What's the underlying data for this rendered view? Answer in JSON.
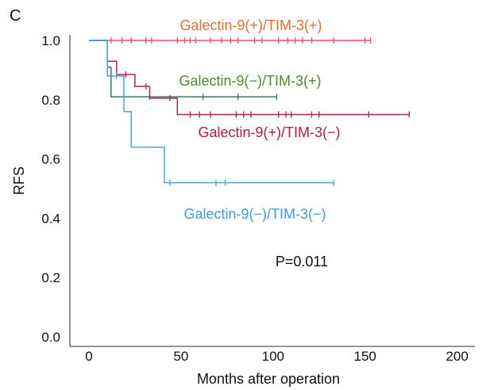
{
  "chart_data": {
    "type": "line",
    "panel_label": "C",
    "xlabel": "Months after operation",
    "ylabel": "RFS",
    "xlim": [
      -10,
      210
    ],
    "ylim": [
      0,
      1.05
    ],
    "xticks": [
      "0",
      "50",
      "100",
      "150",
      "200"
    ],
    "xtick_values": [
      0,
      50,
      100,
      150,
      200
    ],
    "yticks": [
      "0.0",
      "0.2",
      "0.4",
      "0.6",
      "0.8",
      "1.0"
    ],
    "ytick_values": [
      0,
      0.2,
      0.4,
      0.6,
      0.8,
      1.0
    ],
    "annotation": "P=0.011",
    "series": [
      {
        "name": "Galectin-9(+)/TIM-3(+)",
        "color": "#f0506a",
        "label_color": "#f26b2b",
        "steps": [
          [
            0,
            1.0
          ],
          [
            153,
            1.0
          ]
        ],
        "censored": [
          12,
          18,
          23,
          31,
          34,
          48,
          52,
          55,
          58,
          66,
          72,
          77,
          81,
          90,
          94,
          103,
          108,
          112,
          116,
          121,
          133,
          150,
          153
        ]
      },
      {
        "name": "Galectin-9(−)/TIM-3(+)",
        "color": "#3a7a5a",
        "label_color": "#4f8a2c",
        "steps": [
          [
            0,
            1.0
          ],
          [
            10,
            1.0
          ],
          [
            10,
            0.91
          ],
          [
            12,
            0.91
          ],
          [
            12,
            0.81
          ],
          [
            102,
            0.81
          ]
        ],
        "censored": [
          33,
          62,
          81,
          102
        ]
      },
      {
        "name": "Galectin-9(+)/TIM-3(−)",
        "color": "#a8245a",
        "label_color": "#b01e3a",
        "steps": [
          [
            0,
            1.0
          ],
          [
            10,
            1.0
          ],
          [
            10,
            0.93
          ],
          [
            15,
            0.93
          ],
          [
            15,
            0.885
          ],
          [
            25,
            0.885
          ],
          [
            25,
            0.845
          ],
          [
            33,
            0.845
          ],
          [
            33,
            0.805
          ],
          [
            48,
            0.805
          ],
          [
            48,
            0.75
          ],
          [
            174,
            0.75
          ]
        ],
        "censored": [
          20,
          31,
          44,
          55,
          60,
          66,
          80,
          84,
          88,
          103,
          107,
          110,
          121,
          125,
          152,
          174
        ]
      },
      {
        "name": "Galectin-9(−)/TIM-3(−)",
        "color": "#44a6e2",
        "label_color": "#3aa0de",
        "steps": [
          [
            0,
            1.0
          ],
          [
            10,
            1.0
          ],
          [
            10,
            0.88
          ],
          [
            19,
            0.88
          ],
          [
            19,
            0.76
          ],
          [
            23,
            0.76
          ],
          [
            23,
            0.64
          ],
          [
            41,
            0.64
          ],
          [
            41,
            0.52
          ],
          [
            133,
            0.52
          ]
        ],
        "censored": [
          15,
          44,
          69,
          74,
          133
        ]
      }
    ]
  }
}
